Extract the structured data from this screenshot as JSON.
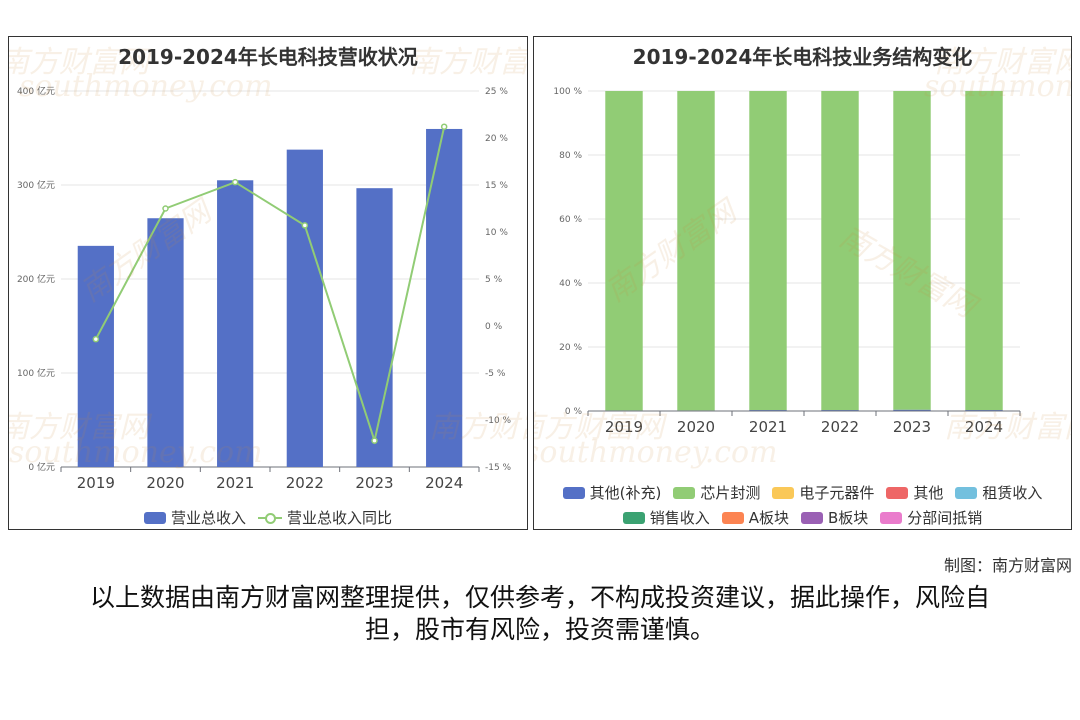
{
  "left_chart": {
    "title": "2019-2024年长电科技营收状况",
    "legend": [
      {
        "name": "营业总收入",
        "kind": "bar",
        "color": "#5470c6"
      },
      {
        "name": "营业总收入同比",
        "kind": "line",
        "color": "#91cc75"
      }
    ]
  },
  "right_chart": {
    "title": "2019-2024年长电科技业务结构变化",
    "legend": [
      {
        "name": "其他(补充)",
        "color": "#5470c6"
      },
      {
        "name": "芯片封测",
        "color": "#91cc75"
      },
      {
        "name": "电子元器件",
        "color": "#fac858"
      },
      {
        "name": "其他",
        "color": "#ee6666"
      },
      {
        "name": "租赁收入",
        "color": "#73c0de"
      },
      {
        "name": "销售收入",
        "color": "#3ba272"
      },
      {
        "name": "A板块",
        "color": "#fc8452"
      },
      {
        "name": "B板块",
        "color": "#9a60b4"
      },
      {
        "name": "分部间抵销",
        "color": "#ea7ccc"
      }
    ]
  },
  "chart_data": [
    {
      "type": "bar",
      "title": "2019-2024年长电科技营收状况",
      "categories": [
        "2019",
        "2020",
        "2021",
        "2022",
        "2023",
        "2024"
      ],
      "y_left": {
        "ticks": [
          0,
          100,
          200,
          300,
          400
        ],
        "unit_suffix": " 亿元",
        "range": [
          0,
          400
        ]
      },
      "y_right": {
        "ticks": [
          -15,
          -10,
          -5,
          0,
          5,
          10,
          15,
          20,
          25
        ],
        "unit_suffix": " %",
        "range": [
          -15,
          25
        ]
      },
      "series": [
        {
          "name": "营业总收入",
          "type": "bar",
          "axis": "left",
          "color": "#5470c6",
          "values": [
            235.26,
            264.64,
            305.02,
            337.62,
            296.61,
            359.62
          ]
        },
        {
          "name": "营业总收入同比",
          "type": "line",
          "axis": "right",
          "color": "#91cc75",
          "values": [
            -1.4,
            12.5,
            15.3,
            10.7,
            -12.2,
            21.2
          ]
        }
      ]
    },
    {
      "type": "bar",
      "stacked": true,
      "title": "2019-2024年长电科技业务结构变化",
      "categories": [
        "2019",
        "2020",
        "2021",
        "2022",
        "2023",
        "2024"
      ],
      "y": {
        "ticks": [
          0,
          20,
          40,
          60,
          80,
          100
        ],
        "unit_suffix": " %",
        "range": [
          0,
          100
        ]
      },
      "series": [
        {
          "name": "其他(补充)",
          "color": "#5470c6",
          "values": [
            0.2,
            0.2,
            0.3,
            0.3,
            0.4,
            0.3
          ]
        },
        {
          "name": "芯片封测",
          "color": "#91cc75",
          "values": [
            99.8,
            99.8,
            99.7,
            99.7,
            99.6,
            99.7
          ]
        },
        {
          "name": "电子元器件",
          "color": "#fac858",
          "values": [
            0,
            0,
            0,
            0,
            0,
            0
          ]
        },
        {
          "name": "其他",
          "color": "#ee6666",
          "values": [
            0,
            0,
            0,
            0,
            0,
            0
          ]
        },
        {
          "name": "租赁收入",
          "color": "#73c0de",
          "values": [
            0,
            0,
            0,
            0,
            0,
            0
          ]
        },
        {
          "name": "销售收入",
          "color": "#3ba272",
          "values": [
            0,
            0,
            0,
            0,
            0,
            0
          ]
        },
        {
          "name": "A板块",
          "color": "#fc8452",
          "values": [
            0,
            0,
            0,
            0,
            0,
            0
          ]
        },
        {
          "name": "B板块",
          "color": "#9a60b4",
          "values": [
            0,
            0,
            0,
            0,
            0,
            0
          ]
        },
        {
          "name": "分部间抵销",
          "color": "#ea7ccc",
          "values": [
            0,
            0,
            0,
            0,
            0,
            0
          ]
        }
      ]
    }
  ],
  "watermark": {
    "cn": "南方财富网",
    "en": "southmoney.com"
  },
  "credit": "制图：南方财富网",
  "disclaimer": "以上数据由南方财富网整理提供，仅供参考，不构成投资建议，据此操作，风险自担，股市有风险，投资需谨慎。"
}
